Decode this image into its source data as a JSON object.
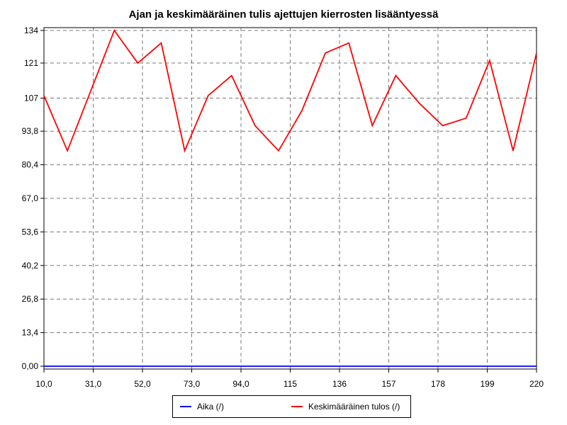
{
  "chart_data": {
    "type": "line",
    "title": "Ajan ja keskimääräinen tulis ajettujen kierrosten lisääntyessä",
    "xlabel": "",
    "ylabel": "",
    "x_ticks": [
      10,
      31,
      52,
      73,
      94,
      115,
      136,
      157,
      178,
      199,
      220
    ],
    "x_tick_labels": [
      "10,0",
      "31,0",
      "52,0",
      "73,0",
      "94,0",
      "115",
      "136",
      "157",
      "178",
      "199",
      "220"
    ],
    "y_ticks": [
      0,
      13.4,
      26.8,
      40.2,
      53.6,
      67.0,
      80.4,
      93.8,
      107,
      121,
      134
    ],
    "y_tick_labels": [
      "0,00",
      "13,4",
      "26,8",
      "40,2",
      "53,6",
      "67,0",
      "80,4",
      "93,8",
      "107",
      "121",
      "134"
    ],
    "xlim": [
      10,
      220
    ],
    "ylim": [
      0,
      134
    ],
    "grid": true,
    "legend_position": "bottom",
    "x": [
      10,
      20,
      30,
      40,
      50,
      60,
      70,
      80,
      90,
      100,
      110,
      120,
      130,
      140,
      150,
      160,
      170,
      180,
      190,
      200,
      210,
      220
    ],
    "series": [
      {
        "name": "Aika (/)",
        "color": "#0000ff",
        "values": [
          0,
          0,
          0,
          0,
          0,
          0,
          0,
          0,
          0,
          0,
          0,
          0,
          0,
          0,
          0,
          0,
          0,
          0,
          0,
          0,
          0,
          0
        ]
      },
      {
        "name": "Keskimääräinen tulos (/)",
        "color": "#ff0000",
        "values": [
          108,
          86,
          110,
          134,
          121,
          129,
          86,
          108,
          116,
          96,
          86,
          102,
          125,
          129,
          96,
          116,
          105,
          96,
          99,
          122,
          86,
          125
        ]
      }
    ]
  }
}
